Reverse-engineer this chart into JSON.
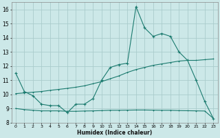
{
  "xlabel": "Humidex (Indice chaleur)",
  "bg_color": "#cce8e8",
  "grid_color": "#aacccc",
  "line_color": "#1a7a6e",
  "xlim": [
    -0.5,
    23.5
  ],
  "ylim": [
    8,
    16.5
  ],
  "xticks": [
    0,
    1,
    2,
    3,
    4,
    5,
    6,
    7,
    8,
    9,
    10,
    11,
    12,
    13,
    14,
    15,
    16,
    17,
    18,
    19,
    20,
    21,
    22,
    23
  ],
  "yticks": [
    8,
    9,
    10,
    11,
    12,
    13,
    14,
    15,
    16
  ],
  "line1_x": [
    0,
    1,
    2,
    3,
    4,
    5,
    6,
    7,
    8,
    9,
    10,
    11,
    12,
    13,
    14,
    15,
    16,
    17,
    18,
    19,
    20,
    21,
    22,
    23
  ],
  "line1_y": [
    11.5,
    10.2,
    9.9,
    9.3,
    9.2,
    9.2,
    8.7,
    9.3,
    9.3,
    9.7,
    11.0,
    11.9,
    12.1,
    12.2,
    16.2,
    14.7,
    14.1,
    14.3,
    14.1,
    13.0,
    12.4,
    11.0,
    9.5,
    8.3
  ],
  "line2_x": [
    0,
    1,
    2,
    3,
    4,
    5,
    6,
    7,
    8,
    9,
    10,
    11,
    12,
    13,
    14,
    15,
    16,
    17,
    18,
    19,
    20,
    21,
    22,
    23
  ],
  "line2_y": [
    10.05,
    10.1,
    10.15,
    10.2,
    10.28,
    10.35,
    10.42,
    10.5,
    10.6,
    10.75,
    10.9,
    11.1,
    11.3,
    11.55,
    11.75,
    11.9,
    12.05,
    12.15,
    12.25,
    12.35,
    12.4,
    12.4,
    12.45,
    12.5
  ],
  "line3_x": [
    0,
    1,
    2,
    3,
    4,
    5,
    6,
    7,
    8,
    9,
    10,
    11,
    12,
    13,
    14,
    15,
    16,
    17,
    18,
    19,
    20,
    21,
    22,
    23
  ],
  "line3_y": [
    9.0,
    8.92,
    8.87,
    8.83,
    8.83,
    8.83,
    8.8,
    8.8,
    8.82,
    8.83,
    8.85,
    8.87,
    8.87,
    8.88,
    8.89,
    8.89,
    8.88,
    8.87,
    8.87,
    8.85,
    8.84,
    8.83,
    8.82,
    8.3
  ]
}
